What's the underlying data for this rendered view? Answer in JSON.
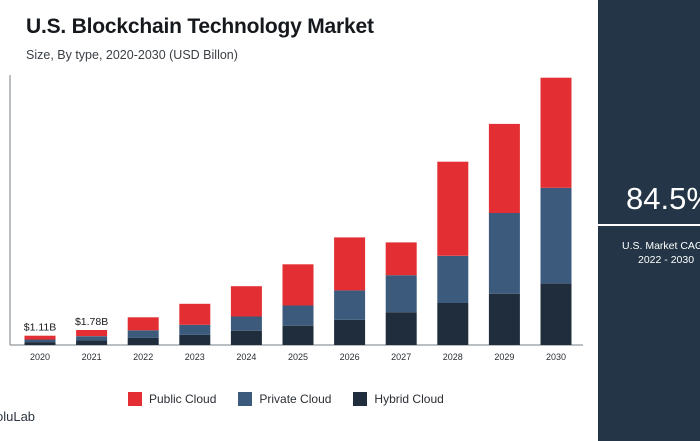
{
  "chart_data": {
    "type": "bar",
    "stacked": true,
    "title": "U.S. Blockchain Technology Market",
    "subtitle": "Size, By type, 2020-2030 (USD Billon)",
    "categories": [
      "2020",
      "2021",
      "2022",
      "2023",
      "2024",
      "2025",
      "2026",
      "2027",
      "2028",
      "2029",
      "2030"
    ],
    "series": [
      {
        "name": "Hybrid Cloud",
        "color": "#1f2d3d",
        "values": [
          0.35,
          0.55,
          0.85,
          1.2,
          1.7,
          2.3,
          3.0,
          3.9,
          5.0,
          6.1,
          7.3
        ]
      },
      {
        "name": "Private Cloud",
        "color": "#3c5a7b",
        "values": [
          0.3,
          0.5,
          0.9,
          1.2,
          1.7,
          2.4,
          3.5,
          4.4,
          5.6,
          9.6,
          11.4
        ]
      },
      {
        "name": "Public Cloud",
        "color": "#e32f33",
        "values": [
          0.46,
          0.73,
          1.55,
          2.5,
          3.6,
          4.9,
          6.3,
          3.9,
          11.2,
          10.6,
          13.1
        ]
      }
    ],
    "data_labels": [
      {
        "category": "2020",
        "text": "$1.11B"
      },
      {
        "category": "2021",
        "text": "$1.78B"
      }
    ],
    "ylim": [
      0,
      32
    ],
    "y_axis_visible": false,
    "legend_position": "bottom",
    "grid": false
  },
  "legend": {
    "items": [
      {
        "label": "Public Cloud",
        "color": "#e32f33"
      },
      {
        "label": "Private Cloud",
        "color": "#3c5a7b"
      },
      {
        "label": "Hybrid Cloud",
        "color": "#1f2d3d"
      }
    ]
  },
  "brand": {
    "text": "oluLab"
  },
  "side_panel": {
    "value": "84.5%",
    "label_line1": "U.S. Market CAGR,",
    "label_line2": "2022 - 2030"
  }
}
